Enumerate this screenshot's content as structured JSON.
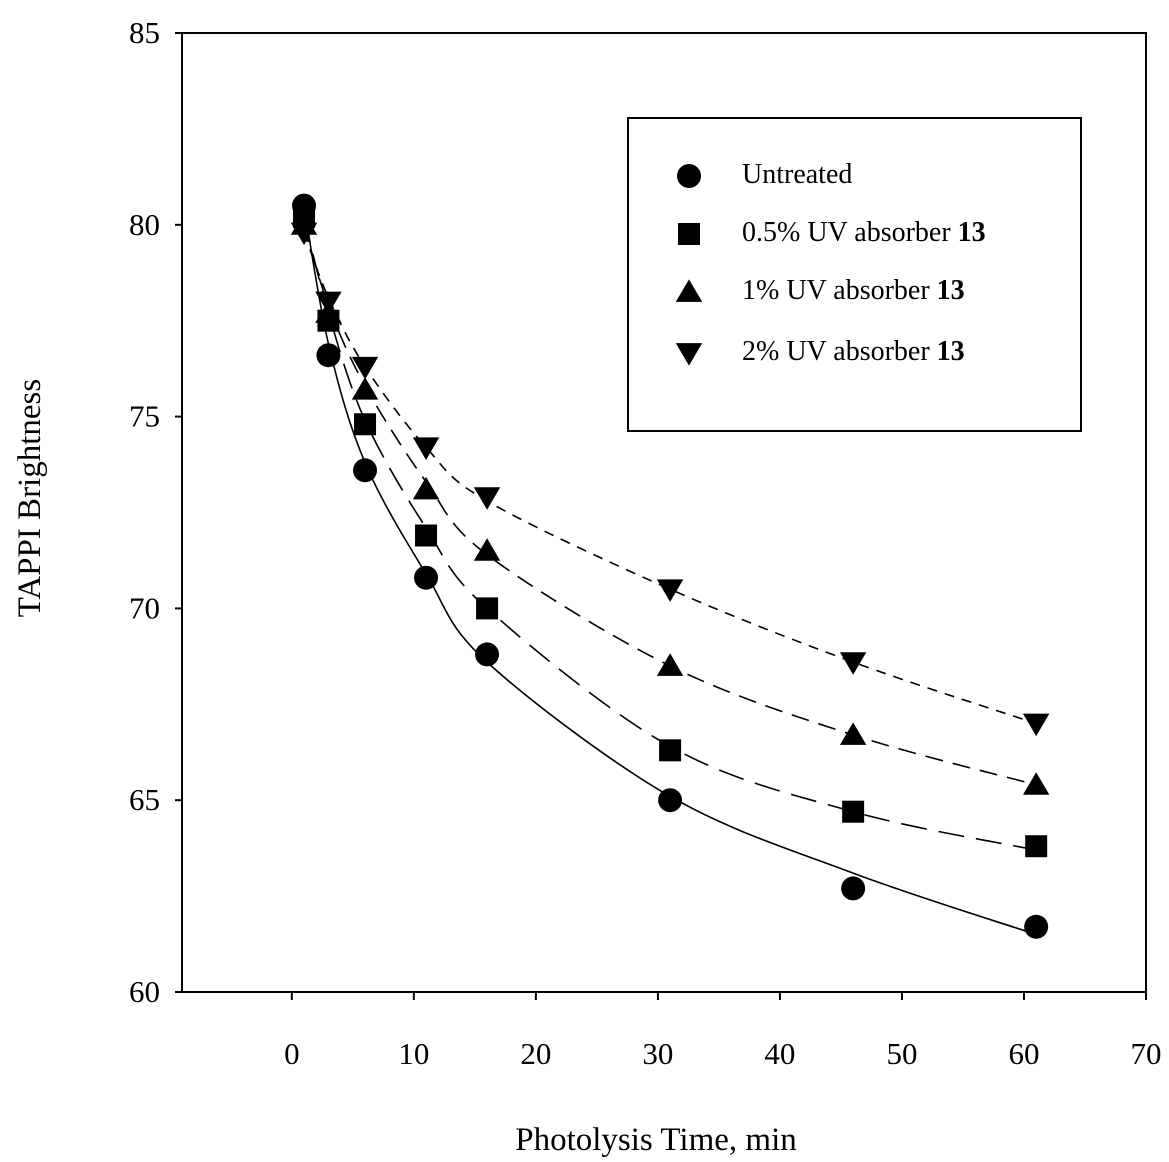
{
  "chart_data": {
    "type": "line",
    "title": "",
    "xlabel": "Photolysis Time, min",
    "ylabel": "TAPPI Brightness",
    "xlim": [
      -9,
      70
    ],
    "ylim": [
      60,
      85
    ],
    "x_ticks": [
      "0",
      "10",
      "20",
      "30",
      "40",
      "50",
      "60",
      "70"
    ],
    "y_ticks": [
      "60",
      "65",
      "70",
      "75",
      "80",
      "85"
    ],
    "grid": false,
    "legend_position": "top-right",
    "x": [
      1,
      3,
      6,
      11,
      16,
      31,
      46,
      61
    ],
    "series": [
      {
        "name": "Untreated",
        "name_suffix": "",
        "marker": "circle",
        "line": "solid",
        "values": [
          80.5,
          76.6,
          73.6,
          70.8,
          68.8,
          65.0,
          62.7,
          61.7
        ],
        "fit": [
          80.5,
          76.9,
          73.8,
          70.9,
          68.6,
          65.1,
          63.1,
          61.5
        ]
      },
      {
        "name": "0.5% UV absorber ",
        "name_suffix": "13",
        "marker": "square",
        "line": "long-dash",
        "values": [
          80.2,
          77.5,
          74.8,
          71.9,
          70.0,
          66.3,
          64.7,
          63.8
        ],
        "fit": [
          80.2,
          77.7,
          74.9,
          72.1,
          70.0,
          66.4,
          64.7,
          63.7
        ]
      },
      {
        "name": "1% UV absorber ",
        "name_suffix": "13",
        "marker": "triangle-up",
        "line": "medium-dash",
        "values": [
          80.0,
          77.7,
          75.7,
          73.1,
          71.5,
          68.5,
          66.7,
          65.4
        ],
        "fit": [
          80.0,
          77.9,
          75.8,
          73.3,
          71.4,
          68.5,
          66.7,
          65.4
        ]
      },
      {
        "name": "2% UV absorber ",
        "name_suffix": "13",
        "marker": "triangle-down",
        "line": "short-dash",
        "values": [
          79.8,
          78.0,
          76.3,
          74.2,
          72.9,
          70.5,
          68.6,
          67.0
        ],
        "fit": [
          79.8,
          78.1,
          76.3,
          74.2,
          72.8,
          70.5,
          68.6,
          67.0
        ]
      }
    ]
  }
}
